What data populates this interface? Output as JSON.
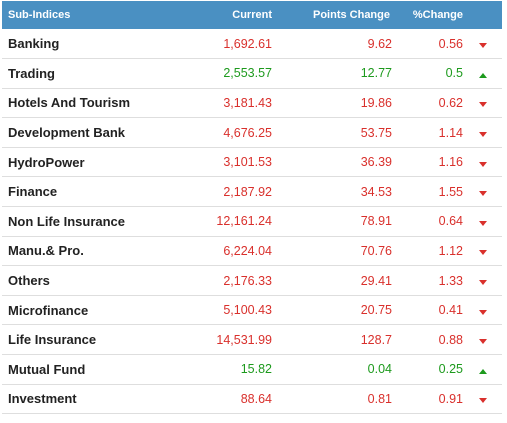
{
  "colors": {
    "header_bg": "#4a90c2",
    "down": "#d9302c",
    "up": "#1d9a1d"
  },
  "header": {
    "name": "Sub-Indices",
    "current": "Current",
    "points_change": "Points Change",
    "pct_change": "%Change"
  },
  "rows": [
    {
      "name": "Banking",
      "current": "1,692.61",
      "points": "9.62",
      "pct": "0.56",
      "direction": "down",
      "arrow_icon": "down-arrow-icon"
    },
    {
      "name": "Trading",
      "current": "2,553.57",
      "points": "12.77",
      "pct": "0.5",
      "direction": "up",
      "arrow_icon": "up-arrow-icon"
    },
    {
      "name": "Hotels And Tourism",
      "current": "3,181.43",
      "points": "19.86",
      "pct": "0.62",
      "direction": "down",
      "arrow_icon": "down-arrow-icon"
    },
    {
      "name": "Development Bank",
      "current": "4,676.25",
      "points": "53.75",
      "pct": "1.14",
      "direction": "down",
      "arrow_icon": "down-arrow-icon"
    },
    {
      "name": "HydroPower",
      "current": "3,101.53",
      "points": "36.39",
      "pct": "1.16",
      "direction": "down",
      "arrow_icon": "down-arrow-icon"
    },
    {
      "name": "Finance",
      "current": "2,187.92",
      "points": "34.53",
      "pct": "1.55",
      "direction": "down",
      "arrow_icon": "down-arrow-icon"
    },
    {
      "name": "Non Life Insurance",
      "current": "12,161.24",
      "points": "78.91",
      "pct": "0.64",
      "direction": "down",
      "arrow_icon": "down-arrow-icon"
    },
    {
      "name": "Manu.& Pro.",
      "current": "6,224.04",
      "points": "70.76",
      "pct": "1.12",
      "direction": "down",
      "arrow_icon": "down-arrow-icon"
    },
    {
      "name": "Others",
      "current": "2,176.33",
      "points": "29.41",
      "pct": "1.33",
      "direction": "down",
      "arrow_icon": "down-arrow-icon"
    },
    {
      "name": "Microfinance",
      "current": "5,100.43",
      "points": "20.75",
      "pct": "0.41",
      "direction": "down",
      "arrow_icon": "down-arrow-icon"
    },
    {
      "name": "Life Insurance",
      "current": "14,531.99",
      "points": "128.7",
      "pct": "0.88",
      "direction": "down",
      "arrow_icon": "down-arrow-icon"
    },
    {
      "name": "Mutual Fund",
      "current": "15.82",
      "points": "0.04",
      "pct": "0.25",
      "direction": "up",
      "arrow_icon": "up-arrow-icon"
    },
    {
      "name": "Investment",
      "current": "88.64",
      "points": "0.81",
      "pct": "0.91",
      "direction": "down",
      "arrow_icon": "down-arrow-icon"
    }
  ]
}
